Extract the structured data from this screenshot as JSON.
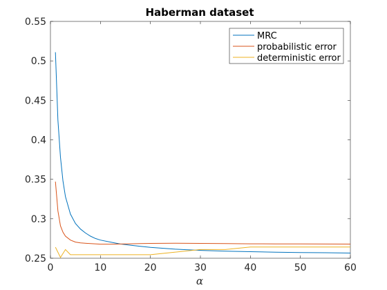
{
  "chart_data": {
    "type": "line",
    "title": "Haberman dataset",
    "xlabel": "α",
    "ylabel": "",
    "xlim": [
      0,
      60
    ],
    "ylim": [
      0.25,
      0.55
    ],
    "xticks": [
      0,
      10,
      20,
      30,
      40,
      50,
      60
    ],
    "yticks": [
      0.25,
      0.3,
      0.35,
      0.4,
      0.45,
      0.5,
      0.55
    ],
    "xtick_labels": [
      "0",
      "10",
      "20",
      "30",
      "40",
      "50",
      "60"
    ],
    "ytick_labels": [
      "0.25",
      "0.3",
      "0.35",
      "0.4",
      "0.45",
      "0.5",
      "0.55"
    ],
    "grid": false,
    "legend_position": "top-right",
    "series": [
      {
        "name": "MRC",
        "color": "#0072BD",
        "x": [
          1,
          1.5,
          2,
          2.5,
          3,
          4,
          5,
          6,
          7,
          8,
          9,
          10,
          12,
          14,
          16,
          18,
          20,
          25,
          30,
          35,
          40,
          45,
          50,
          55,
          60
        ],
        "y": [
          0.511,
          0.425,
          0.378,
          0.348,
          0.328,
          0.306,
          0.294,
          0.287,
          0.282,
          0.278,
          0.275,
          0.273,
          0.2705,
          0.268,
          0.2665,
          0.265,
          0.2637,
          0.2615,
          0.26,
          0.259,
          0.2583,
          0.2577,
          0.2573,
          0.257,
          0.2566
        ]
      },
      {
        "name": "probabilistic error",
        "color": "#D95319",
        "x": [
          1,
          1.5,
          2,
          2.5,
          3,
          4,
          5,
          6,
          8,
          10,
          12,
          14,
          16,
          18,
          20,
          25,
          30,
          35,
          40,
          45,
          50,
          55,
          60
        ],
        "y": [
          0.347,
          0.31,
          0.291,
          0.283,
          0.278,
          0.273,
          0.2705,
          0.2695,
          0.2685,
          0.2678,
          0.2678,
          0.268,
          0.2683,
          0.2686,
          0.2688,
          0.269,
          0.2688,
          0.2685,
          0.2683,
          0.2682,
          0.2681,
          0.268,
          0.2679
        ]
      },
      {
        "name": "deterministic error",
        "color": "#EDB120",
        "x": [
          1,
          2,
          3,
          4,
          5,
          10,
          15,
          20,
          25,
          30,
          35,
          40,
          45,
          50,
          55,
          60
        ],
        "y": [
          0.264,
          0.251,
          0.261,
          0.2545,
          0.2545,
          0.2545,
          0.2545,
          0.2545,
          0.2578,
          0.261,
          0.261,
          0.2643,
          0.2643,
          0.2643,
          0.2643,
          0.2643
        ]
      }
    ]
  }
}
